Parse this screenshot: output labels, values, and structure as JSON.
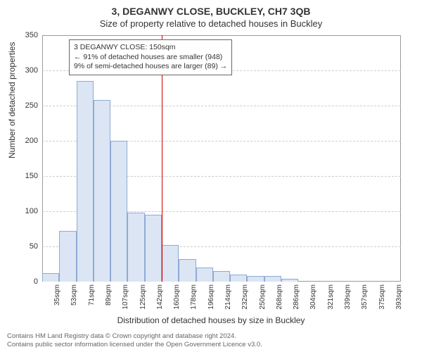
{
  "header": {
    "title": "3, DEGANWY CLOSE, BUCKLEY, CH7 3QB",
    "subtitle": "Size of property relative to detached houses in Buckley"
  },
  "chart": {
    "type": "histogram",
    "ylabel": "Number of detached properties",
    "xlabel": "Distribution of detached houses by size in Buckley",
    "ylim": [
      0,
      350
    ],
    "ytick_step": 50,
    "yticks": [
      0,
      50,
      100,
      150,
      200,
      250,
      300,
      350
    ],
    "background_color": "#ffffff",
    "grid_color": "#cccccc",
    "axis_color": "#999999",
    "bar_fill": "#dbe5f4",
    "bar_stroke": "#8faad4",
    "bar_width_ratio": 1.0,
    "categories": [
      "35sqm",
      "53sqm",
      "71sqm",
      "89sqm",
      "107sqm",
      "125sqm",
      "142sqm",
      "160sqm",
      "178sqm",
      "196sqm",
      "214sqm",
      "232sqm",
      "250sqm",
      "268sqm",
      "286sqm",
      "304sqm",
      "321sqm",
      "339sqm",
      "357sqm",
      "375sqm",
      "393sqm"
    ],
    "values": [
      12,
      72,
      285,
      258,
      200,
      98,
      95,
      52,
      32,
      20,
      15,
      10,
      8,
      8,
      4,
      0,
      0,
      0,
      0,
      0,
      0
    ],
    "reference_line": {
      "index_after": 7,
      "color": "#cc0000",
      "value_label": "150sqm"
    },
    "annotation": {
      "line1": "3 DEGANWY CLOSE: 150sqm",
      "line2": "← 91% of detached houses are smaller (948)",
      "line3": "9% of semi-detached houses are larger (89) →",
      "border_color": "#666666",
      "font_size_pt": 10.5
    }
  },
  "footer": {
    "line1": "Contains HM Land Registry data © Crown copyright and database right 2024.",
    "line2": "Contains public sector information licensed under the Open Government Licence v3.0."
  }
}
